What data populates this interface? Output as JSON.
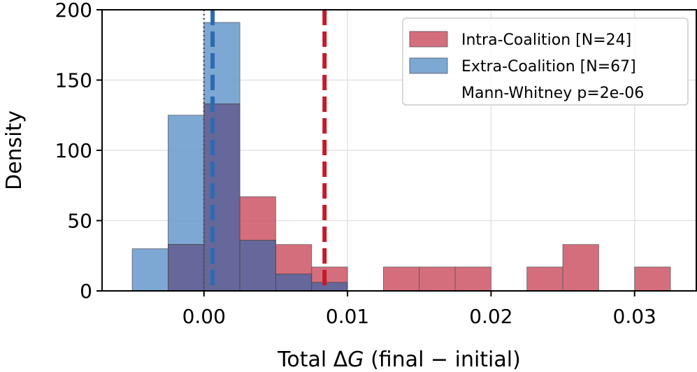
{
  "chart_data": {
    "type": "histogram",
    "xlabel_prefix": "Total Δ",
    "xlabel_var": "G",
    "xlabel_suffix": " (final − initial)",
    "ylabel": "Density",
    "xlim": [
      -0.0071,
      0.0343
    ],
    "ylim": [
      0,
      200
    ],
    "xticks": [
      0.0,
      0.01,
      0.02,
      0.03
    ],
    "xtick_labels": [
      "0.00",
      "0.01",
      "0.02",
      "0.03"
    ],
    "yticks": [
      0,
      50,
      100,
      150,
      200
    ],
    "ytick_labels": [
      "0",
      "50",
      "100",
      "150",
      "200"
    ],
    "grid": true,
    "legend_position": "top-right",
    "series": [
      {
        "name": "Extra-Coalition [N=67]",
        "color": "#6699cc",
        "bins": [
          {
            "x0": -0.005,
            "x1": -0.0025,
            "density": 30
          },
          {
            "x0": -0.0025,
            "x1": 0.0,
            "density": 125
          },
          {
            "x0": 0.0,
            "x1": 0.0025,
            "density": 191
          },
          {
            "x0": 0.0025,
            "x1": 0.005,
            "density": 36
          },
          {
            "x0": 0.005,
            "x1": 0.0075,
            "density": 12
          },
          {
            "x0": 0.0075,
            "x1": 0.01,
            "density": 6
          }
        ]
      },
      {
        "name": "Intra-Coalition [N=24]",
        "color": "#cc5566",
        "bins": [
          {
            "x0": -0.0025,
            "x1": 0.0,
            "density": 33
          },
          {
            "x0": 0.0,
            "x1": 0.0025,
            "density": 133
          },
          {
            "x0": 0.0025,
            "x1": 0.005,
            "density": 67
          },
          {
            "x0": 0.005,
            "x1": 0.0075,
            "density": 33
          },
          {
            "x0": 0.0075,
            "x1": 0.01,
            "density": 17
          },
          {
            "x0": 0.0125,
            "x1": 0.015,
            "density": 17
          },
          {
            "x0": 0.015,
            "x1": 0.0175,
            "density": 17
          },
          {
            "x0": 0.0175,
            "x1": 0.02,
            "density": 17
          },
          {
            "x0": 0.0225,
            "x1": 0.025,
            "density": 17
          },
          {
            "x0": 0.025,
            "x1": 0.0275,
            "density": 33
          },
          {
            "x0": 0.03,
            "x1": 0.0325,
            "density": 17
          }
        ]
      }
    ],
    "overlap_color": "#66679a",
    "vlines": [
      {
        "name": "zero-line",
        "x": 0.0,
        "color": "#555555",
        "style": "dotted"
      },
      {
        "name": "extra-mean-line",
        "x": 0.0006,
        "color": "#2b6cb0",
        "style": "dashed"
      },
      {
        "name": "intra-mean-line",
        "x": 0.0084,
        "color": "#c01c2c",
        "style": "dashed"
      }
    ],
    "legend": [
      {
        "label": "Intra-Coalition [N=24]",
        "color": "#cc5566"
      },
      {
        "label": "Extra-Coalition [N=67]",
        "color": "#6699cc"
      },
      {
        "label": "Mann-Whitney p=2e-06",
        "color": null
      }
    ]
  }
}
